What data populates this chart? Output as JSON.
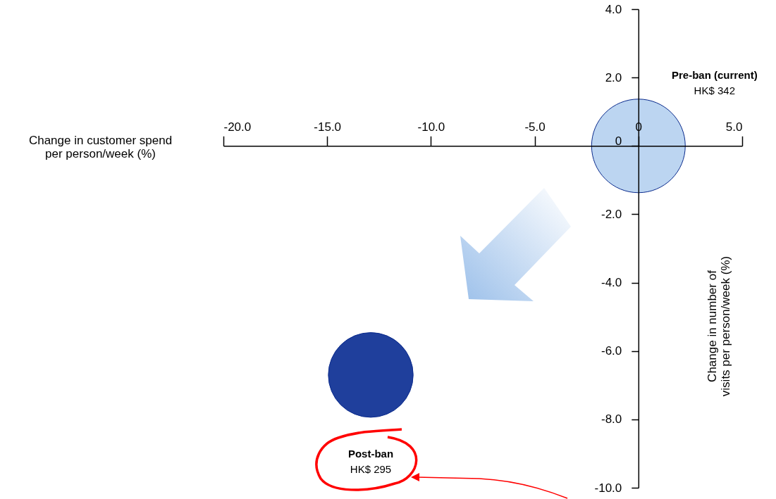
{
  "chart_data": {
    "type": "bubble",
    "xlabel": "Change in customer spend per person/week (%)",
    "ylabel": "Change in number of visits per person/week (%)",
    "x": [
      0,
      -12.9
    ],
    "values": [
      0,
      -6.7
    ],
    "sizes": [
      1,
      0.82
    ],
    "colors": [
      "#bcd5f1",
      "#1f3f9c"
    ],
    "xlim": [
      -20,
      5
    ],
    "ylim": [
      -10,
      4
    ],
    "xticks": [
      {
        "value": -20,
        "label": "-20.0"
      },
      {
        "value": -15,
        "label": "-15.0"
      },
      {
        "value": -10,
        "label": "-10.0"
      },
      {
        "value": -5,
        "label": "-5.0"
      },
      0,
      {
        "value": 5,
        "label": "5.0"
      }
    ],
    "yticks": [
      {
        "value": 4,
        "label": "4.0"
      },
      {
        "value": 2,
        "label": "2.0"
      },
      0,
      {
        "value": -2,
        "label": "-2.0"
      },
      {
        "value": -4,
        "label": "-4.0"
      },
      {
        "value": -6,
        "label": "-6.0"
      },
      {
        "value": -8,
        "label": "-8.0"
      },
      {
        "value": -10,
        "label": "-10.0"
      }
    ],
    "annotations": [
      "Pre-ban (current)",
      "HK$ 342",
      "Post-ban",
      "HK$ 295"
    ],
    "grid": false
  }
}
